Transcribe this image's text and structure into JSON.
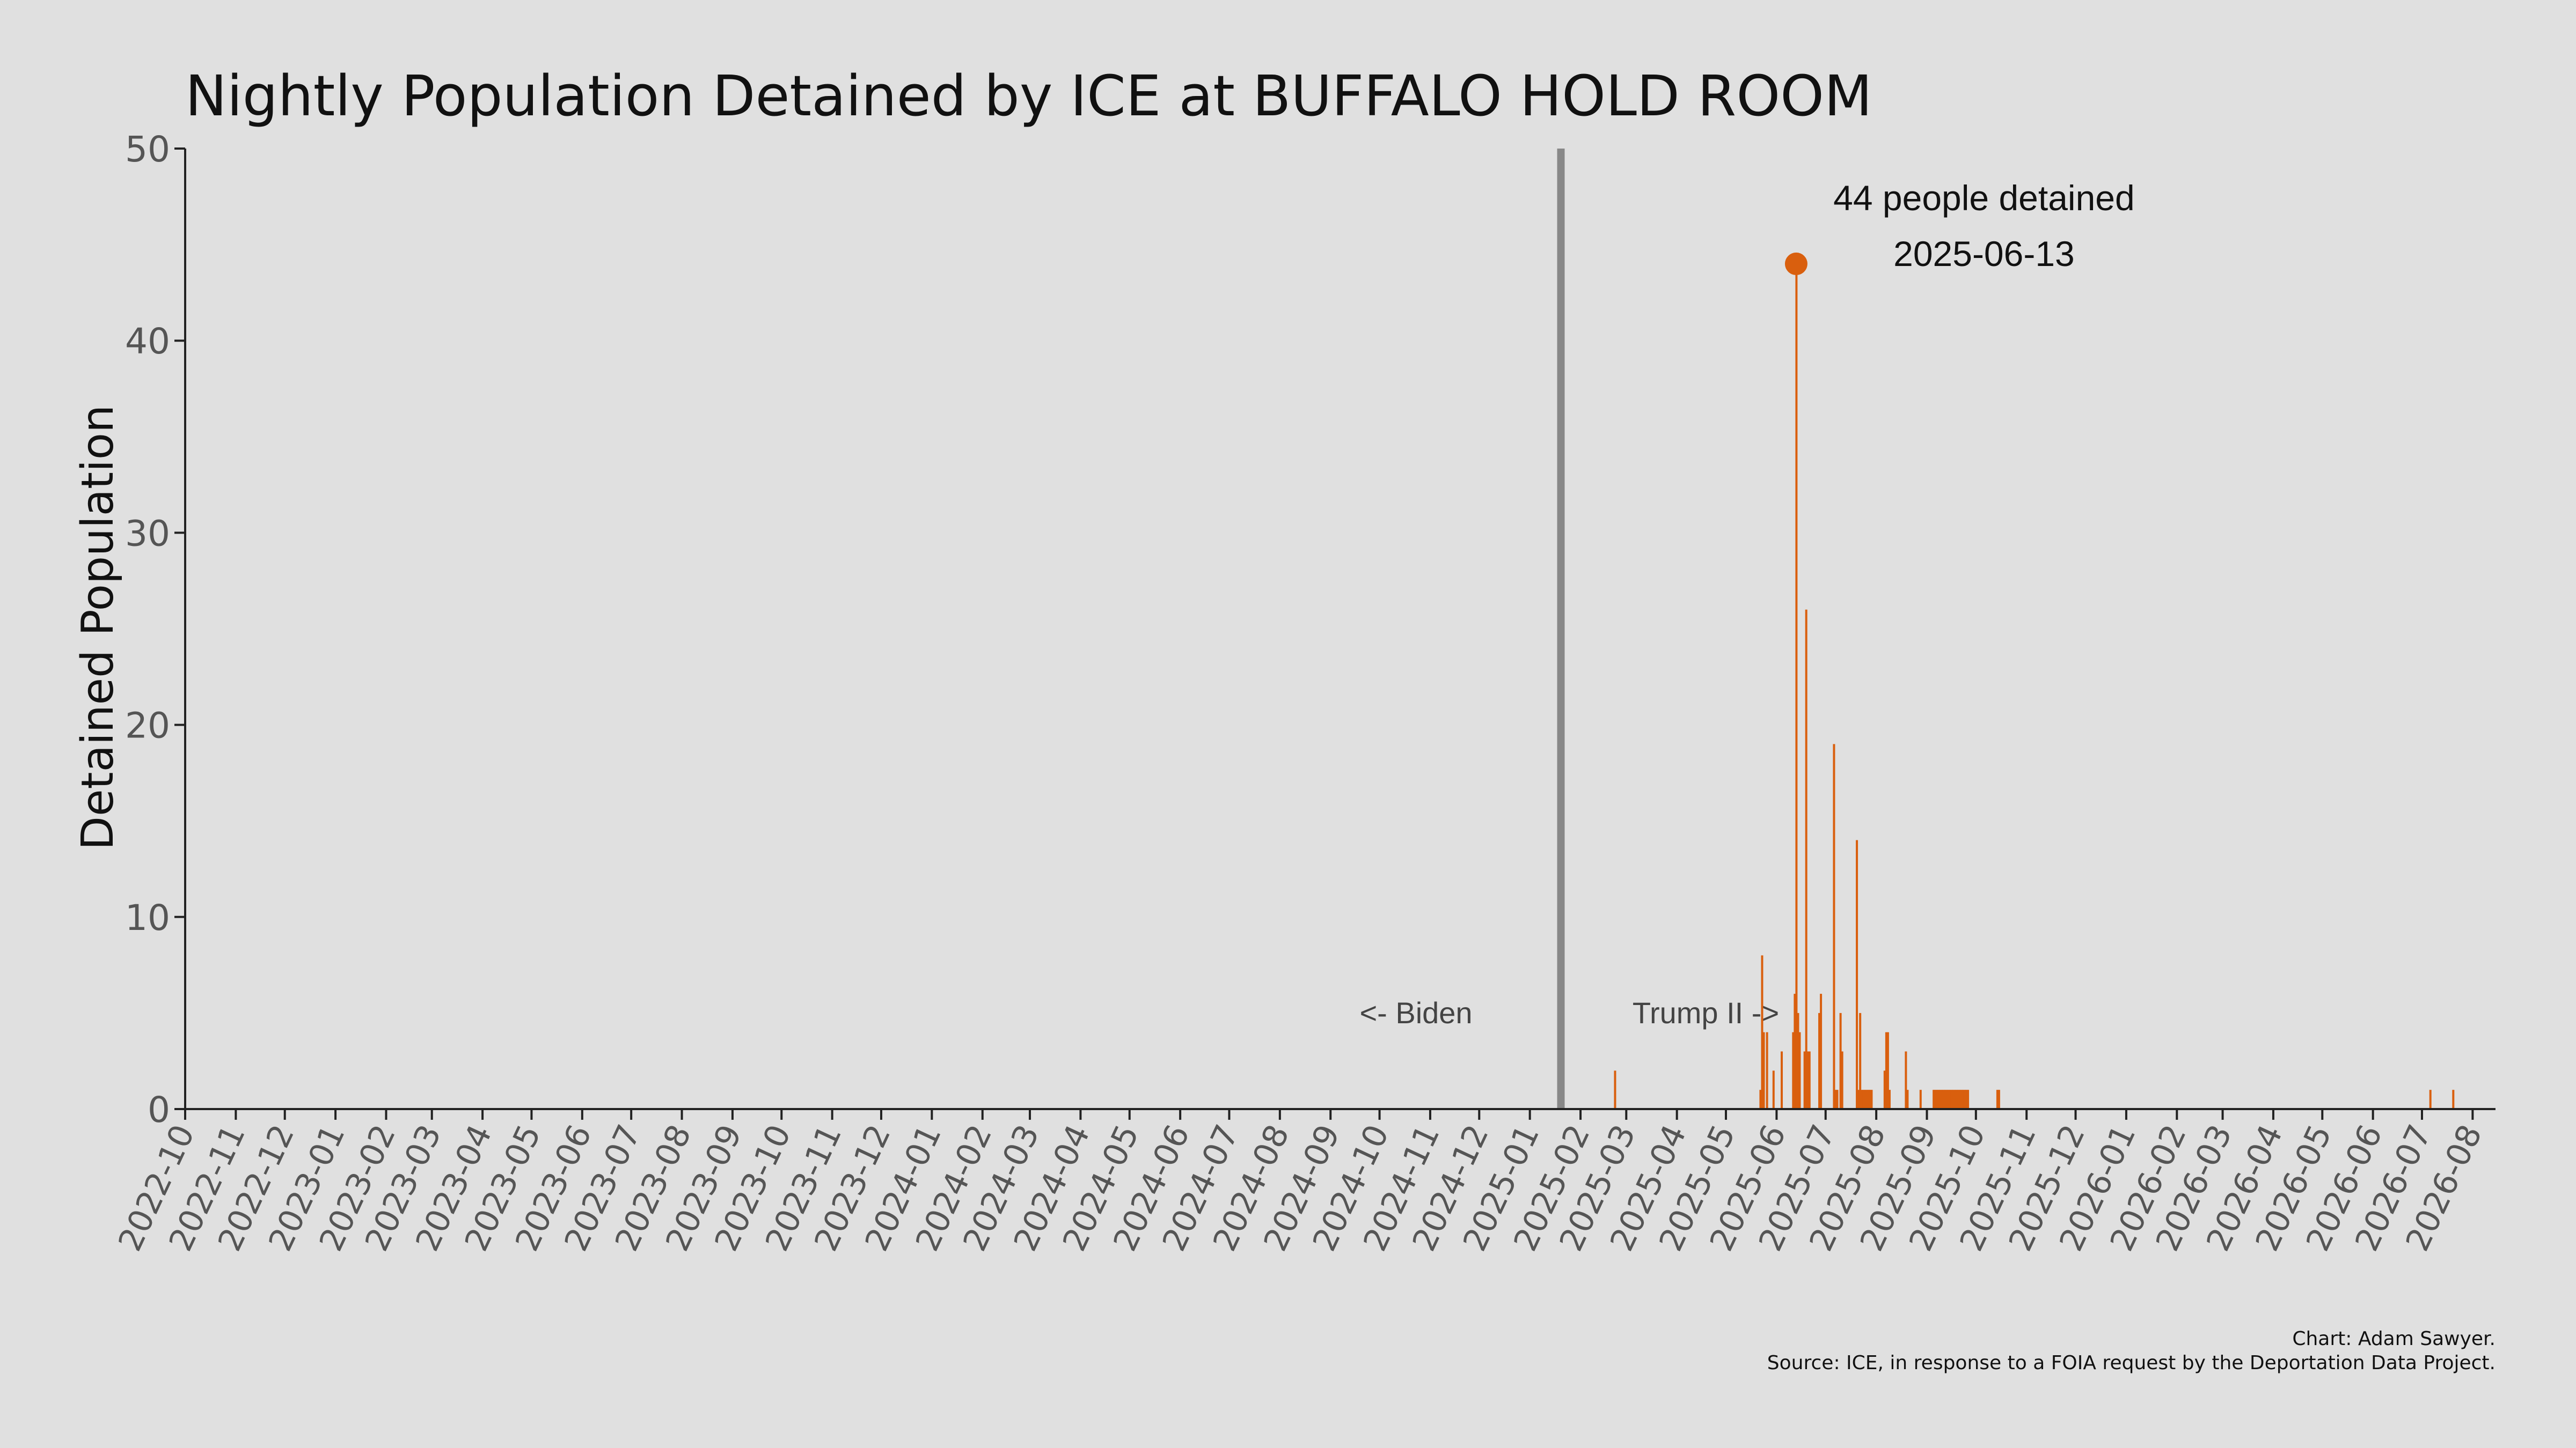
{
  "chart_data": {
    "type": "bar",
    "title": "Nightly Population Detained by ICE at BUFFALO HOLD ROOM",
    "ylabel": "Detained Population",
    "xlabel": "",
    "ylim": [
      0,
      50
    ],
    "yticks": [
      0,
      10,
      20,
      30,
      40,
      50
    ],
    "xlim": [
      "2022-10-01",
      "2026-08-15"
    ],
    "xticks": [
      "2022-10",
      "2022-11",
      "2022-12",
      "2023-01",
      "2023-02",
      "2023-03",
      "2023-04",
      "2023-05",
      "2023-06",
      "2023-07",
      "2023-08",
      "2023-09",
      "2023-10",
      "2023-11",
      "2023-12",
      "2024-01",
      "2024-02",
      "2024-03",
      "2024-04",
      "2024-05",
      "2024-06",
      "2024-07",
      "2024-08",
      "2024-09",
      "2024-10",
      "2024-11",
      "2024-12",
      "2025-01",
      "2025-02",
      "2025-03",
      "2025-04",
      "2025-05",
      "2025-06",
      "2025-07",
      "2025-08",
      "2025-09",
      "2025-10",
      "2025-11",
      "2025-12",
      "2026-01",
      "2026-02",
      "2026-03",
      "2026-04",
      "2026-05",
      "2026-06",
      "2026-07",
      "2026-08"
    ],
    "color": "#d95f0e",
    "series": [
      {
        "points": [
          [
            "2025-02-22",
            2
          ],
          [
            "2025-05-22",
            1
          ],
          [
            "2025-05-23",
            8
          ],
          [
            "2025-05-24",
            4
          ],
          [
            "2025-05-26",
            4
          ],
          [
            "2025-05-30",
            2
          ],
          [
            "2025-06-04",
            3
          ],
          [
            "2025-06-11",
            4
          ],
          [
            "2025-06-12",
            6
          ],
          [
            "2025-06-13",
            44
          ],
          [
            "2025-06-14",
            5
          ],
          [
            "2025-06-15",
            4
          ],
          [
            "2025-06-18",
            3
          ],
          [
            "2025-06-19",
            26
          ],
          [
            "2025-06-20",
            3
          ],
          [
            "2025-06-21",
            3
          ],
          [
            "2025-06-27",
            5
          ],
          [
            "2025-06-28",
            6
          ],
          [
            "2025-07-06",
            19
          ],
          [
            "2025-07-07",
            1
          ],
          [
            "2025-07-08",
            1
          ],
          [
            "2025-07-10",
            5
          ],
          [
            "2025-07-11",
            3
          ],
          [
            "2025-07-20",
            14
          ],
          [
            "2025-07-21",
            1
          ],
          [
            "2025-07-22",
            5
          ],
          [
            "2025-07-23",
            1
          ],
          [
            "2025-07-24",
            1
          ],
          [
            "2025-07-25",
            1
          ],
          [
            "2025-07-26",
            1
          ],
          [
            "2025-07-27",
            1
          ],
          [
            "2025-07-28",
            1
          ],
          [
            "2025-07-29",
            1
          ],
          [
            "2025-08-06",
            2
          ],
          [
            "2025-08-07",
            4
          ],
          [
            "2025-08-08",
            4
          ],
          [
            "2025-08-09",
            1
          ],
          [
            "2025-08-19",
            3
          ],
          [
            "2025-08-20",
            1
          ],
          [
            "2025-08-28",
            1
          ],
          [
            "2025-09-05",
            1
          ],
          [
            "2025-09-06",
            1
          ],
          [
            "2025-09-07",
            1
          ],
          [
            "2025-09-08",
            1
          ],
          [
            "2025-09-09",
            1
          ],
          [
            "2025-09-10",
            1
          ],
          [
            "2025-09-11",
            1
          ],
          [
            "2025-09-12",
            1
          ],
          [
            "2025-09-13",
            1
          ],
          [
            "2025-09-14",
            1
          ],
          [
            "2025-09-15",
            1
          ],
          [
            "2025-09-16",
            1
          ],
          [
            "2025-09-17",
            1
          ],
          [
            "2025-09-18",
            1
          ],
          [
            "2025-09-19",
            1
          ],
          [
            "2025-09-20",
            1
          ],
          [
            "2025-09-21",
            1
          ],
          [
            "2025-09-22",
            1
          ],
          [
            "2025-09-23",
            1
          ],
          [
            "2025-09-24",
            1
          ],
          [
            "2025-09-25",
            1
          ],
          [
            "2025-09-26",
            1
          ],
          [
            "2025-10-14",
            1
          ],
          [
            "2025-10-15",
            1
          ],
          [
            "2026-07-06",
            1
          ],
          [
            "2026-07-20",
            1
          ]
        ]
      }
    ],
    "divider": {
      "date": "2025-01-20",
      "color": "#888888"
    },
    "era_labels": {
      "left": "<- Biden",
      "right": "Trump II ->"
    },
    "peak": {
      "date": "2025-06-13",
      "value": 44,
      "label_line1": "44 people detained",
      "label_line2": "2025-06-13"
    }
  },
  "credits": {
    "line1": "Chart: Adam Sawyer.",
    "line2": "Source: ICE, in response to a FOIA request by the Deportation Data Project."
  }
}
